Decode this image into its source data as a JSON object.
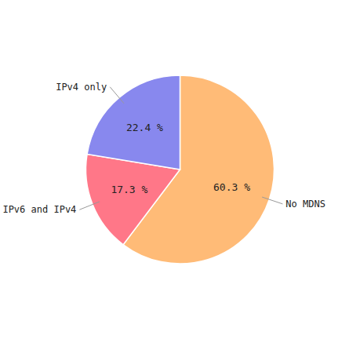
{
  "chart_data": {
    "type": "pie",
    "categories": [
      "No MDNS",
      "IPv6 and IPv4",
      "IPv4 only"
    ],
    "values": [
      60.3,
      17.3,
      22.4
    ],
    "value_labels": [
      "60.3 %",
      "17.3 %",
      "22.4 %"
    ],
    "colors": [
      "#FFBB77",
      "#FF7788",
      "#8888EE"
    ],
    "data_labels": true
  }
}
